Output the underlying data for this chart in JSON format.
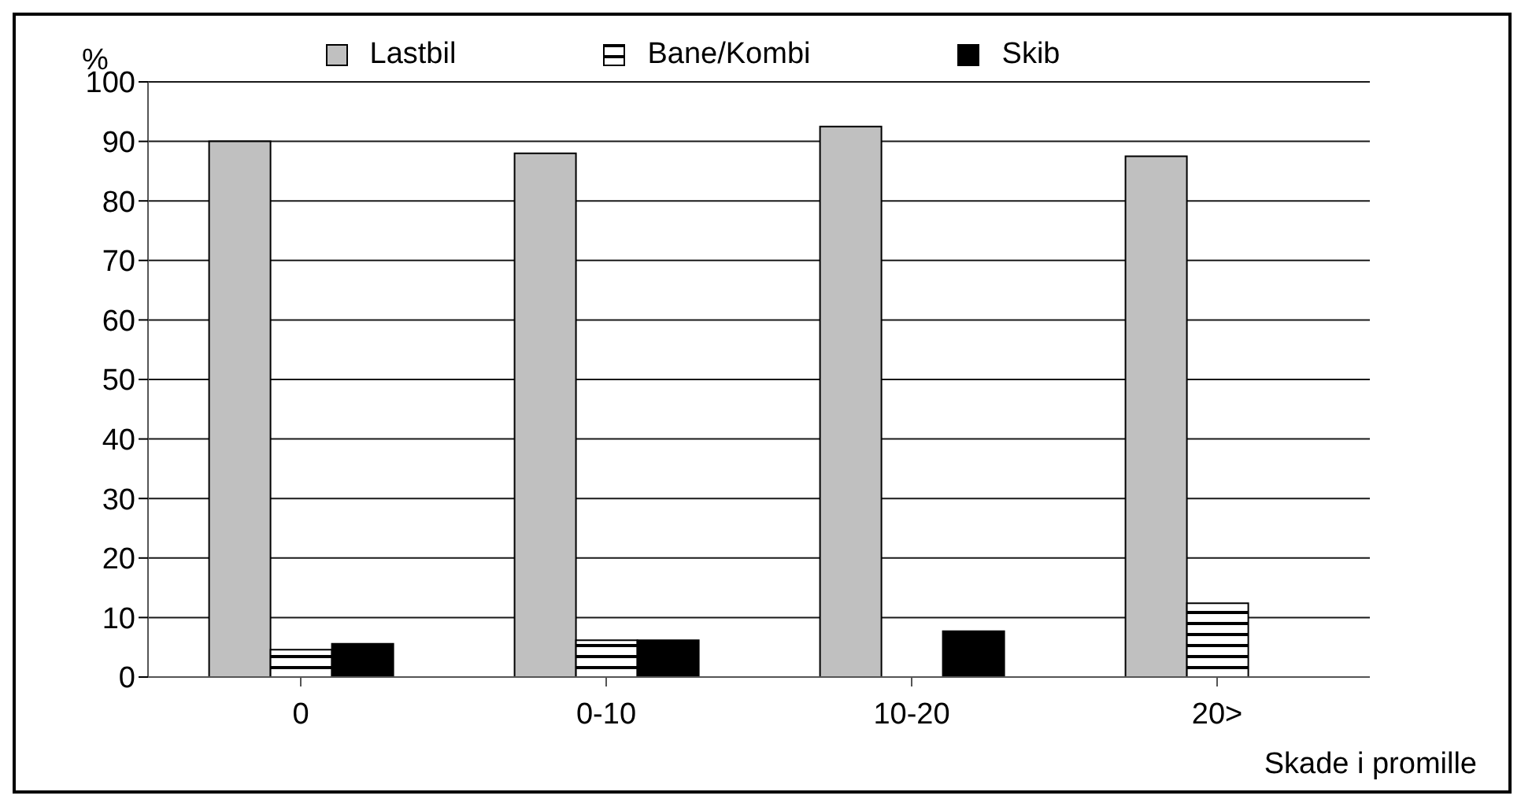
{
  "chart_data": {
    "type": "bar",
    "ylabel": "%",
    "xlabel": "Skade i promille",
    "categories": [
      "0",
      "0-10",
      "10-20",
      "20>"
    ],
    "series": [
      {
        "name": "Lastbil",
        "color": "#c0c0c0",
        "values": [
          90,
          88,
          92.5,
          87.5
        ]
      },
      {
        "name": "Bane/Kombi",
        "color": "#000000",
        "values": [
          4.6,
          6.2,
          0,
          12.4
        ]
      },
      {
        "name": "Skib",
        "color": "#000000",
        "values": [
          5.6,
          6.2,
          7.7,
          0
        ]
      }
    ],
    "ylim": [
      0,
      100
    ],
    "yticks": [
      0,
      10,
      20,
      30,
      40,
      50,
      60,
      70,
      80,
      90,
      100
    ],
    "grid": "y",
    "legend": "top"
  }
}
